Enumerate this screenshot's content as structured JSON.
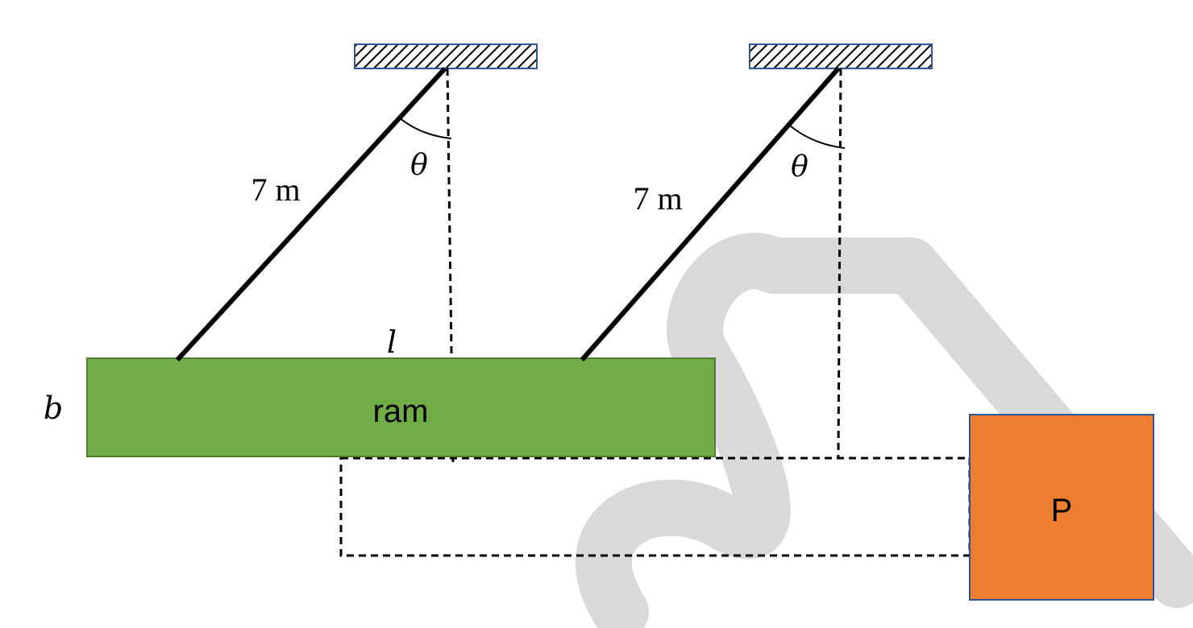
{
  "pendulum_left": {
    "length_label": "7 m",
    "angle_label": "θ"
  },
  "pendulum_right": {
    "length_label": "7 m",
    "angle_label": "θ"
  },
  "ram": {
    "label": "ram",
    "length_symbol": "l",
    "width_symbol": "b",
    "fill_color": "#70AD47"
  },
  "block": {
    "label": "P",
    "fill_color": "#ED7D31"
  }
}
